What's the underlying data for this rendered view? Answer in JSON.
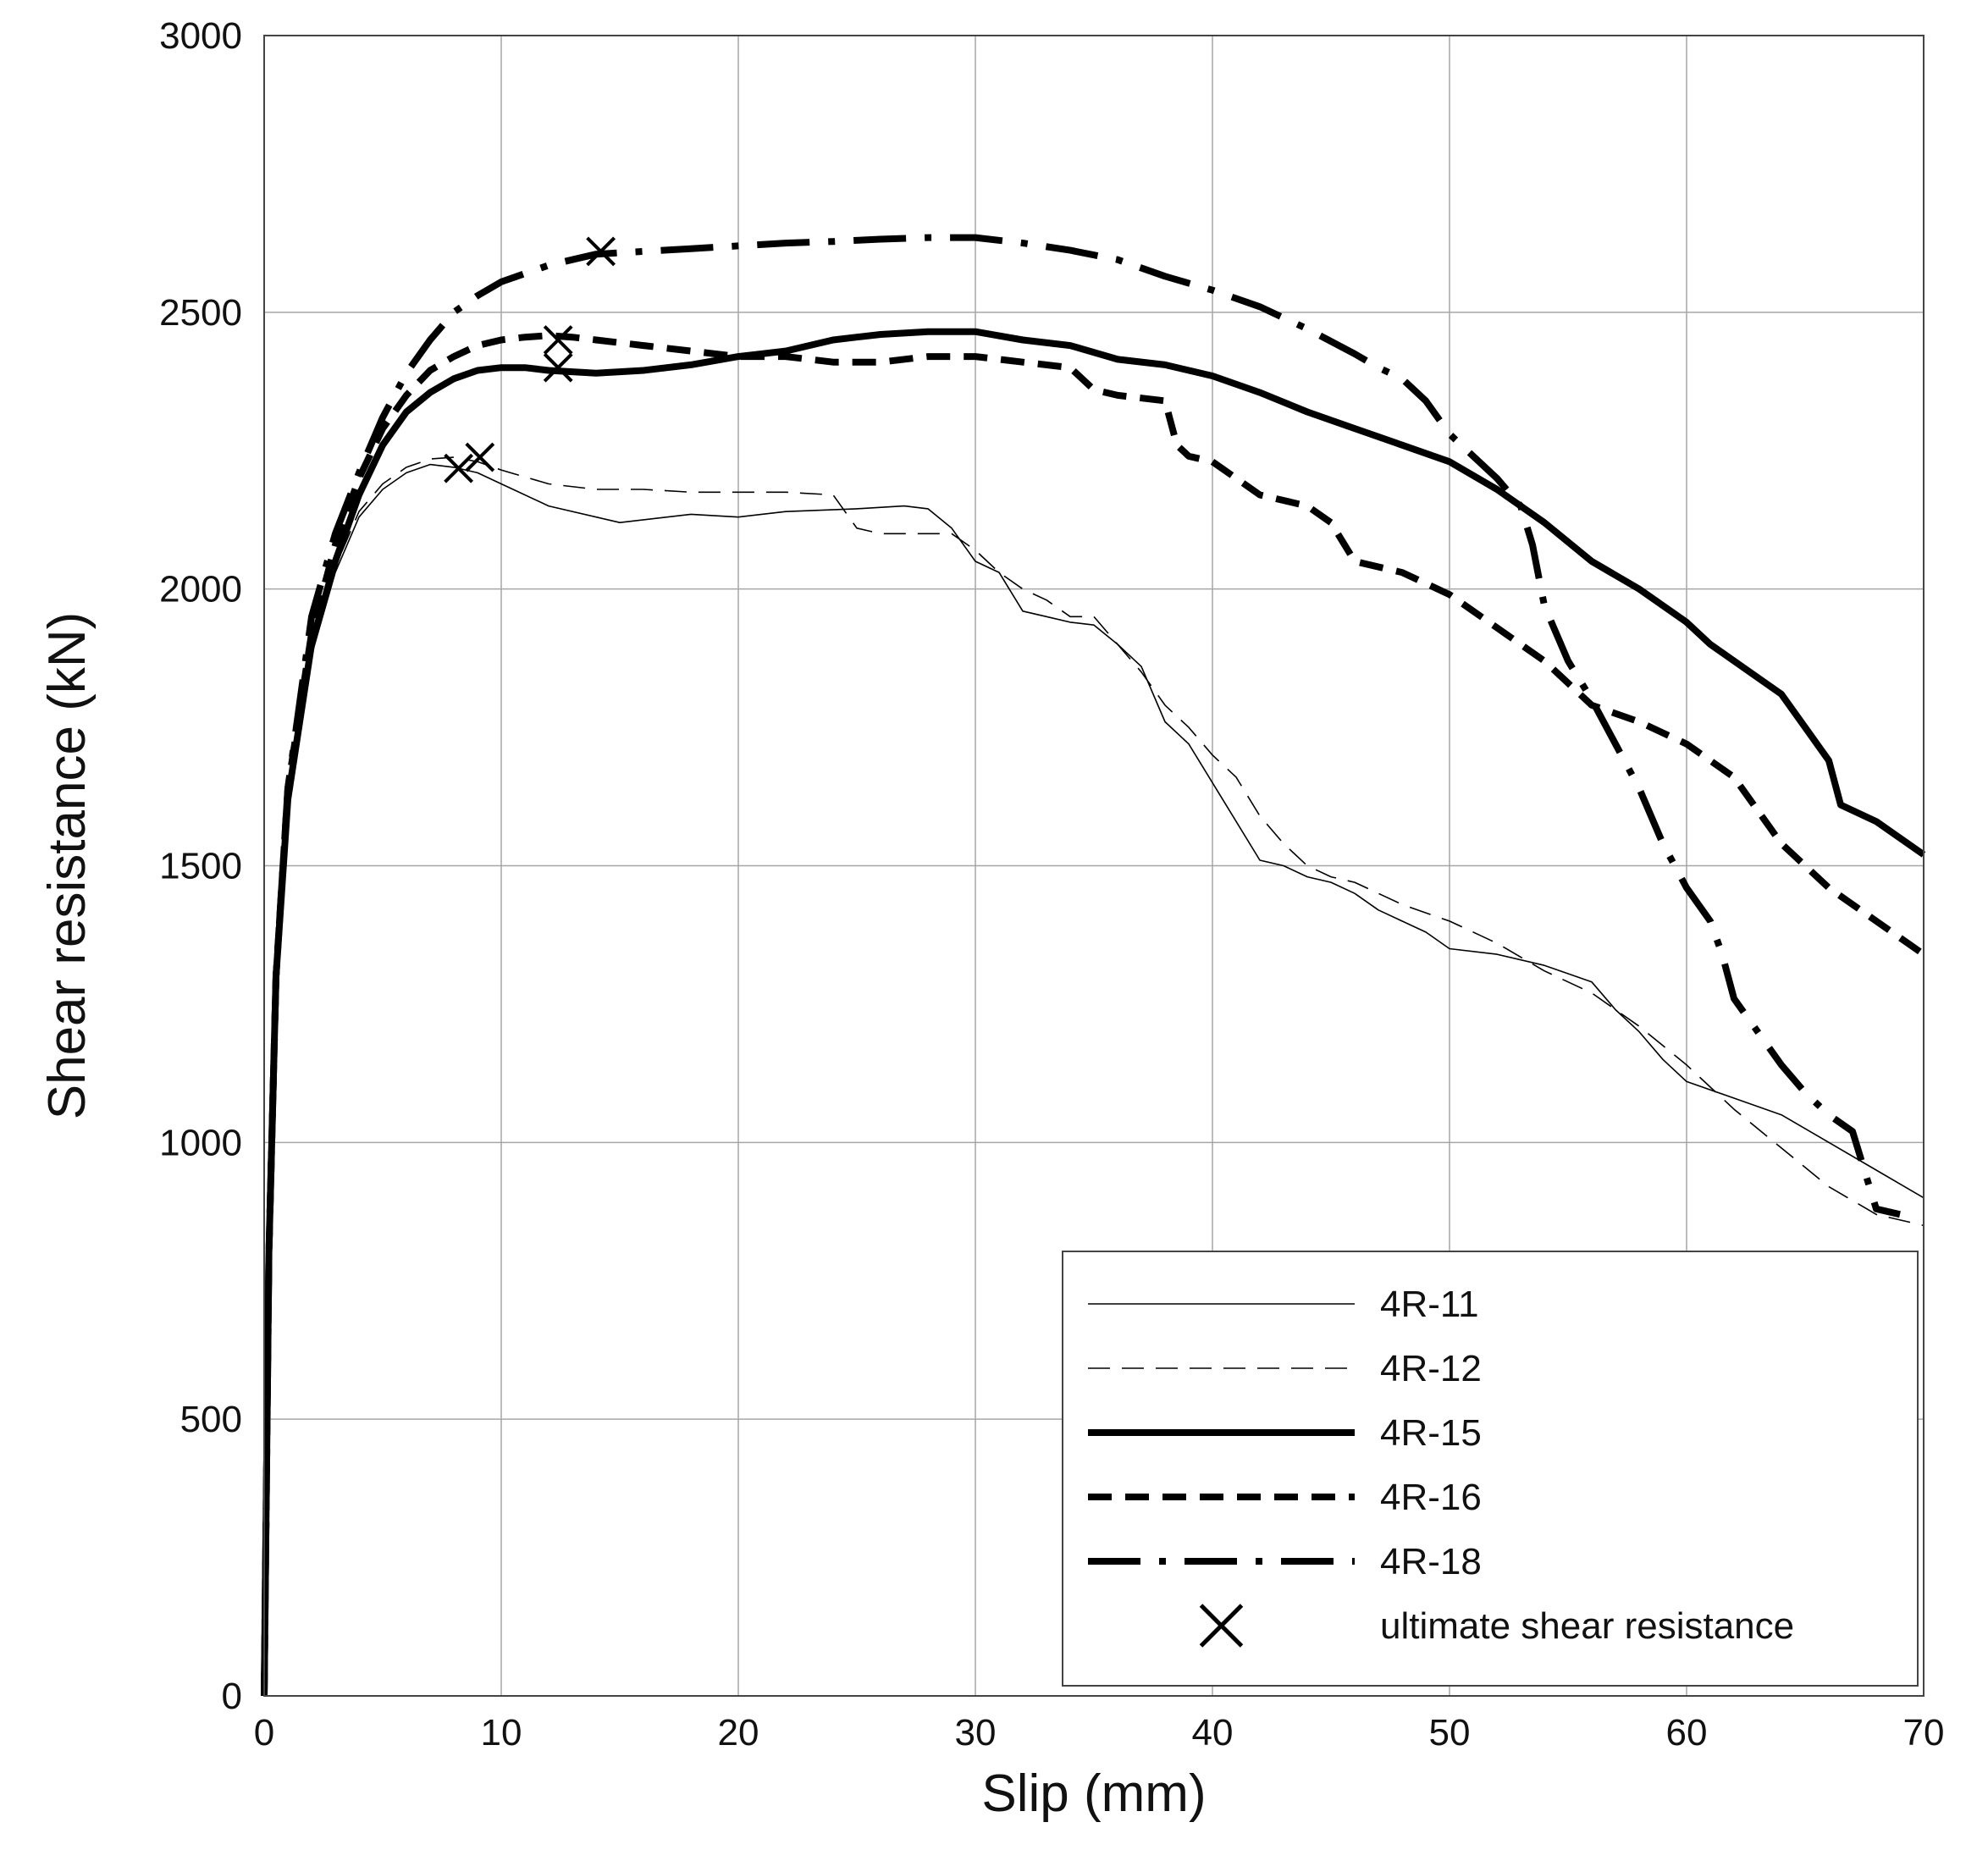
{
  "chart_data": {
    "type": "line",
    "title": "",
    "xlabel": "Slip (mm)",
    "ylabel": "Shear resistance (kN)",
    "xlim": [
      0,
      70
    ],
    "ylim": [
      0,
      3000
    ],
    "xticks": [
      0,
      10,
      20,
      30,
      40,
      50,
      60,
      70
    ],
    "yticks": [
      0,
      500,
      1000,
      1500,
      2000,
      2500,
      3000
    ],
    "grid": true,
    "legend_position": "bottom-right",
    "series": [
      {
        "name": "4R-11",
        "style": "thin-solid",
        "x": [
          0,
          0.2,
          0.5,
          1,
          2,
          3,
          4,
          5,
          6,
          7,
          8,
          9,
          10,
          12,
          15,
          18,
          20,
          22,
          25,
          27,
          28,
          29,
          30,
          31,
          32,
          33,
          34,
          35,
          36,
          37,
          38,
          39,
          40,
          41,
          42,
          43,
          44,
          45,
          46,
          47,
          48,
          49,
          50,
          52,
          54,
          56,
          57,
          58,
          59,
          60,
          62,
          64,
          66,
          68,
          70
        ],
        "y": [
          0,
          800,
          1300,
          1600,
          1880,
          2030,
          2130,
          2180,
          2210,
          2225,
          2220,
          2210,
          2190,
          2150,
          2120,
          2135,
          2130,
          2140,
          2145,
          2150,
          2145,
          2110,
          2050,
          2030,
          1960,
          1950,
          1940,
          1935,
          1900,
          1860,
          1760,
          1720,
          1650,
          1580,
          1510,
          1500,
          1480,
          1470,
          1450,
          1420,
          1400,
          1380,
          1350,
          1340,
          1320,
          1290,
          1240,
          1200,
          1150,
          1110,
          1080,
          1050,
          1000,
          950,
          900
        ]
      },
      {
        "name": "4R-12",
        "style": "thin-dashed",
        "x": [
          0,
          0.2,
          0.5,
          1,
          2,
          3,
          4,
          5,
          6,
          7,
          8,
          9,
          10,
          12,
          14,
          16,
          18,
          20,
          22,
          24,
          25,
          26,
          27,
          28,
          29,
          30,
          31,
          32,
          33,
          34,
          35,
          36,
          37,
          38,
          39,
          40,
          41,
          42,
          43,
          44,
          45,
          46,
          48,
          50,
          52,
          54,
          56,
          58,
          60,
          62,
          64,
          66,
          68,
          70
        ],
        "y": [
          0,
          800,
          1300,
          1600,
          1890,
          2040,
          2140,
          2190,
          2220,
          2235,
          2238,
          2230,
          2215,
          2190,
          2180,
          2180,
          2175,
          2175,
          2175,
          2170,
          2110,
          2100,
          2100,
          2100,
          2100,
          2070,
          2030,
          2000,
          1980,
          1950,
          1950,
          1900,
          1850,
          1790,
          1750,
          1700,
          1660,
          1590,
          1540,
          1500,
          1480,
          1470,
          1430,
          1400,
          1360,
          1310,
          1270,
          1210,
          1140,
          1060,
          990,
          920,
          870,
          850
        ]
      },
      {
        "name": "4R-15",
        "style": "thick-solid",
        "x": [
          0,
          0.2,
          0.5,
          1,
          2,
          3,
          4,
          5,
          6,
          7,
          8,
          9,
          10,
          11,
          12,
          14,
          16,
          18,
          20,
          22,
          24,
          25,
          26,
          28,
          30,
          32,
          34,
          36,
          38,
          40,
          42,
          44,
          46,
          48,
          50,
          52,
          54,
          56,
          58,
          60,
          61,
          62,
          64,
          65,
          66,
          66.5,
          68,
          70
        ],
        "y": [
          0,
          800,
          1300,
          1620,
          1900,
          2050,
          2170,
          2260,
          2320,
          2355,
          2380,
          2395,
          2400,
          2400,
          2395,
          2390,
          2395,
          2405,
          2420,
          2430,
          2450,
          2455,
          2460,
          2465,
          2465,
          2450,
          2440,
          2415,
          2405,
          2385,
          2355,
          2320,
          2290,
          2260,
          2230,
          2180,
          2120,
          2050,
          2000,
          1940,
          1900,
          1870,
          1810,
          1750,
          1690,
          1610,
          1580,
          1520
        ]
      },
      {
        "name": "4R-16",
        "style": "thick-dashed",
        "x": [
          0,
          0.2,
          0.5,
          1,
          2,
          3,
          4,
          5,
          6,
          7,
          8,
          9,
          10,
          11,
          12,
          13,
          14,
          16,
          18,
          20,
          22,
          24,
          26,
          28,
          30,
          32,
          34,
          35,
          36,
          38,
          38.5,
          39,
          40,
          42,
          44,
          45,
          46,
          48,
          50,
          52,
          54,
          56,
          58,
          60,
          62,
          64,
          66,
          68,
          70
        ],
        "y": [
          0,
          800,
          1300,
          1640,
          1920,
          2080,
          2200,
          2290,
          2350,
          2395,
          2420,
          2440,
          2450,
          2455,
          2458,
          2455,
          2450,
          2440,
          2430,
          2420,
          2420,
          2410,
          2410,
          2420,
          2420,
          2410,
          2400,
          2360,
          2350,
          2340,
          2260,
          2240,
          2230,
          2170,
          2150,
          2120,
          2050,
          2030,
          1990,
          1930,
          1870,
          1790,
          1760,
          1720,
          1660,
          1540,
          1460,
          1400,
          1340
        ]
      },
      {
        "name": "4R-18",
        "style": "thick-dash-dot",
        "x": [
          0,
          0.2,
          0.5,
          1,
          2,
          3,
          4,
          5,
          6,
          7,
          8,
          9,
          10,
          11,
          12,
          13,
          14,
          16,
          18,
          20,
          22,
          24,
          26,
          28,
          30,
          32,
          34,
          36,
          38,
          40,
          42,
          44,
          46,
          47,
          48,
          49,
          50,
          51,
          52,
          53,
          53.5,
          54,
          55,
          56,
          57,
          58,
          59,
          60,
          61,
          61.5,
          62,
          63,
          64,
          65,
          66,
          67,
          68,
          69
        ],
        "y": [
          0,
          800,
          1300,
          1640,
          1950,
          2100,
          2210,
          2310,
          2390,
          2450,
          2500,
          2530,
          2555,
          2570,
          2585,
          2595,
          2605,
          2610,
          2615,
          2620,
          2625,
          2628,
          2632,
          2635,
          2635,
          2625,
          2612,
          2595,
          2565,
          2540,
          2510,
          2470,
          2425,
          2400,
          2380,
          2340,
          2280,
          2240,
          2200,
          2150,
          2080,
          1970,
          1870,
          1800,
          1720,
          1640,
          1540,
          1460,
          1400,
          1340,
          1260,
          1200,
          1140,
          1090,
          1050,
          1020,
          880,
          870
        ]
      }
    ],
    "markers": {
      "name": "ultimate shear resistance",
      "symbol": "x",
      "points": [
        {
          "series": "4R-11",
          "x": 8.2,
          "y": 2218
        },
        {
          "series": "4R-12",
          "x": 9.1,
          "y": 2238
        },
        {
          "series": "4R-15",
          "x": 12.4,
          "y": 2400
        },
        {
          "series": "4R-16",
          "x": 12.4,
          "y": 2450
        },
        {
          "series": "4R-18",
          "x": 14.2,
          "y": 2610
        }
      ]
    }
  }
}
